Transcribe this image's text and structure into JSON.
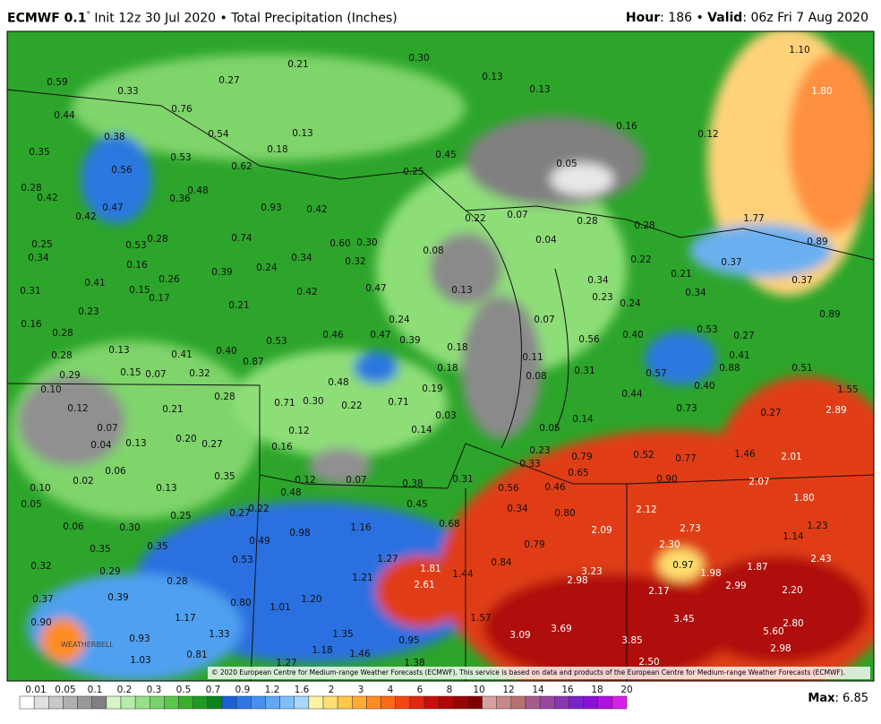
{
  "header": {
    "model": "ECMWF 0.1",
    "degree": "°",
    "rest": "Init 12z 30 Jul 2020 • Total Precipitation (Inches)",
    "hour_key": "Hour",
    "hour_val": ": 186 • ",
    "valid_key": "Valid",
    "valid_val": ": 06z Fri 7 Aug 2020"
  },
  "map": {
    "watermark": "WEATHERBELL",
    "copyright": "© 2020 European Centre for Medium-range Weather Forecasts (ECMWF). This service is based on data and products of the European Centre for Medium-range Weather Forecasts (ECMWF).",
    "labels": [
      "0.21",
      "0.27",
      "0.30",
      "0.13",
      "0.13",
      "0.59",
      "0.33",
      "0.76",
      "0.44",
      "0.38",
      "0.54",
      "0.13",
      "0.16",
      "0.12",
      "0.35",
      "0.53",
      "0.18",
      "0.05",
      "0.45",
      "0.56",
      "0.62",
      "0.25",
      "0.28",
      "0.48",
      "0.42",
      "0.36",
      "0.93",
      "0.42",
      "0.47",
      "0.42",
      "0.22",
      "0.07",
      "0.28",
      "0.28",
      "1.77",
      "0.25",
      "0.53",
      "0.28",
      "0.74",
      "0.60",
      "0.30",
      "0.04",
      "0.89",
      "0.34",
      "0.16",
      "0.39",
      "0.24",
      "0.34",
      "0.32",
      "0.08",
      "0.22",
      "0.37",
      "0.21",
      "0.41",
      "0.26",
      "0.31",
      "0.15",
      "0.17",
      "0.42",
      "0.47",
      "0.13",
      "0.34",
      "0.23",
      "0.24",
      "0.34",
      "0.37",
      "0.23",
      "0.21",
      "0.89",
      "0.24",
      "0.07",
      "0.16",
      "0.46",
      "0.47",
      "0.39",
      "0.53",
      "0.56",
      "0.40",
      "0.53",
      "0.28",
      "0.13",
      "0.41",
      "0.40",
      "0.87",
      "0.18",
      "0.11",
      "0.27",
      "0.41",
      "0.88",
      "0.28",
      "0.15",
      "0.07",
      "0.32",
      "0.18",
      "0.08",
      "0.31",
      "0.57",
      "0.51",
      "0.29",
      "0.10",
      "0.48",
      "0.19",
      "0.40",
      "0.44",
      "1.55",
      "0.28",
      "0.71",
      "0.30",
      "0.22",
      "0.71",
      "0.12",
      "0.21",
      "0.73",
      "0.27",
      "2.89",
      "0.03",
      "0.14",
      "0.07",
      "0.12",
      "0.14",
      "0.05",
      "0.04",
      "0.13",
      "0.20",
      "0.27",
      "0.16",
      "0.23",
      "0.79",
      "0.52",
      "0.77",
      "1.46",
      "2.01",
      "0.06",
      "0.33",
      "0.65",
      "0.35",
      "0.02",
      "0.12",
      "0.07",
      "0.38",
      "0.31",
      "0.90",
      "2.07",
      "0.10",
      "0.13",
      "0.48",
      "0.56",
      "0.46",
      "1.80",
      "0.05",
      "0.45",
      "0.34",
      "0.80",
      "2.12",
      "0.27",
      "0.25",
      "0.22",
      "0.06",
      "0.30",
      "0.68",
      "1.16",
      "2.09",
      "2.73",
      "1.23",
      "0.98",
      "0.49",
      "0.35",
      "0.79",
      "1.14",
      "0.35",
      "2.30",
      "0.53",
      "1.27",
      "0.84",
      "0.97",
      "0.32",
      "0.29",
      "1.81",
      "3.23",
      "1.98",
      "1.87",
      "2.43",
      "1.44",
      "1.21",
      "0.28",
      "2.98",
      "2.61",
      "2.17",
      "2.99",
      "2.20",
      "0.39",
      "1.20",
      "0.37",
      "0.80",
      "1.01",
      "1.17",
      "1.57",
      "3.45",
      "0.90",
      "2.80",
      "1.33",
      "3.09",
      "3.69",
      "5.60",
      "0.93",
      "1.35",
      "0.95",
      "3.85",
      "2.98",
      "0.81",
      "1.18",
      "1.46",
      "1.03",
      "1.27",
      "1.38",
      "2.50",
      "1.10",
      "1.80"
    ]
  },
  "colorbar": {
    "labels": [
      "0.01",
      "0.05",
      "0.1",
      "0.2",
      "0.3",
      "0.5",
      "0.7",
      "0.9",
      "1.2",
      "1.6",
      "2",
      "3",
      "4",
      "6",
      "8",
      "10",
      "12",
      "14",
      "16",
      "18",
      "20"
    ],
    "colors": [
      "#ffffff",
      "#e0e0e0",
      "#c8c8c8",
      "#b0b0b0",
      "#989898",
      "#808080",
      "#d8f5c8",
      "#b8ecaa",
      "#98e08a",
      "#78d46a",
      "#58c84a",
      "#38b02e",
      "#209a20",
      "#0c841c",
      "#1c60d8",
      "#2c78e8",
      "#4690f0",
      "#60a8f5",
      "#80c0f8",
      "#a8d8fb",
      "#fff3a0",
      "#ffe070",
      "#ffc848",
      "#ffac30",
      "#ff8c20",
      "#ff6a14",
      "#f04810",
      "#e0280c",
      "#c81008",
      "#b00806",
      "#980404",
      "#800000",
      "#d8a0a0",
      "#c88888",
      "#b87070",
      "#a85a8a",
      "#9a46a0",
      "#8a34b4",
      "#7a22c8",
      "#8a10d8",
      "#b010e0",
      "#d820e8"
    ],
    "max_key": "Max",
    "max_val": ": 6.85"
  }
}
